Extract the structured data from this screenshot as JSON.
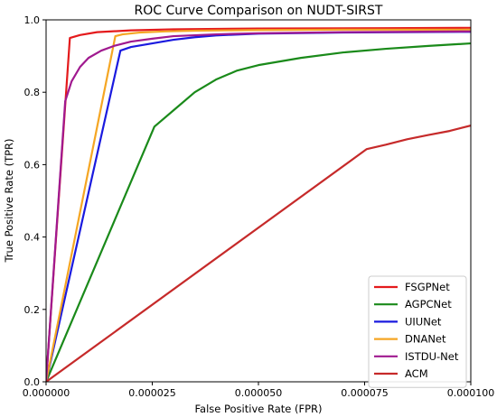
{
  "chart_data": {
    "type": "line",
    "title": "ROC Curve Comparison on NUDT-SIRST",
    "xlabel": "False Positive Rate (FPR)",
    "ylabel": "True Positive Rate (TPR)",
    "xlim": [
      0,
      0.0001
    ],
    "ylim": [
      0,
      1.0
    ],
    "xticks": [
      0,
      2.5e-05,
      5e-05,
      7.5e-05,
      0.0001
    ],
    "xtick_labels": [
      "0.000000",
      "0.000025",
      "0.000050",
      "0.000075",
      "0.000100"
    ],
    "yticks": [
      0,
      0.2,
      0.4,
      0.6,
      0.8,
      1.0
    ],
    "ytick_labels": [
      "0.0",
      "0.2",
      "0.4",
      "0.6",
      "0.8",
      "1.0"
    ],
    "grid": false,
    "legend": "lower-right",
    "series": [
      {
        "name": "FSGPNet",
        "color": "#e41a1c",
        "x": [
          0,
          5.6e-06,
          8e-06,
          1.2e-05,
          2e-05,
          3e-05,
          5e-05,
          8e-05,
          0.0001
        ],
        "y": [
          0,
          0.95,
          0.958,
          0.966,
          0.971,
          0.974,
          0.976,
          0.977,
          0.978
        ]
      },
      {
        "name": "AGPCNet",
        "color": "#1a8a1a",
        "x": [
          0,
          2.55e-05,
          3e-05,
          3.5e-05,
          4e-05,
          4.5e-05,
          5e-05,
          6e-05,
          7e-05,
          8e-05,
          9e-05,
          0.0001
        ],
        "y": [
          0,
          0.705,
          0.75,
          0.8,
          0.835,
          0.86,
          0.875,
          0.895,
          0.91,
          0.92,
          0.928,
          0.935
        ]
      },
      {
        "name": "UIUNet",
        "color": "#1a1adf",
        "x": [
          0,
          1.75e-05,
          2e-05,
          2.5e-05,
          3e-05,
          3.5e-05,
          4e-05,
          5e-05,
          7e-05,
          0.0001
        ],
        "y": [
          0,
          0.915,
          0.925,
          0.935,
          0.945,
          0.952,
          0.957,
          0.962,
          0.965,
          0.967
        ]
      },
      {
        "name": "DNANet",
        "color": "#f5a623",
        "x": [
          0,
          1.63e-05,
          1.8e-05,
          2.2e-05,
          2.8e-05,
          3.5e-05,
          5e-05,
          7e-05,
          0.0001
        ],
        "y": [
          0,
          0.955,
          0.96,
          0.965,
          0.968,
          0.97,
          0.972,
          0.973,
          0.973
        ]
      },
      {
        "name": "ISTDU-Net",
        "color": "#a0198f",
        "x": [
          0,
          4.5e-06,
          6e-06,
          8e-06,
          1e-05,
          1.3e-05,
          1.6e-05,
          2e-05,
          2.5e-05,
          3e-05,
          4e-05,
          5e-05,
          7e-05,
          0.0001
        ],
        "y": [
          0,
          0.775,
          0.83,
          0.87,
          0.895,
          0.915,
          0.928,
          0.94,
          0.948,
          0.955,
          0.96,
          0.963,
          0.966,
          0.968
        ]
      },
      {
        "name": "ACM",
        "color": "#c62a2a",
        "x": [
          0,
          7.55e-05,
          8e-05,
          8.5e-05,
          9e-05,
          9.5e-05,
          0.0001
        ],
        "y": [
          0,
          0.643,
          0.655,
          0.67,
          0.682,
          0.693,
          0.708
        ]
      }
    ]
  }
}
